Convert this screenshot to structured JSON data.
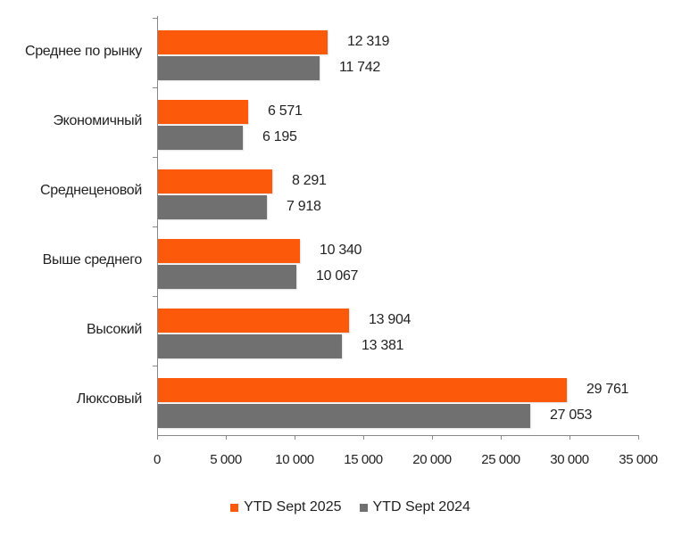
{
  "chart_data": {
    "type": "bar",
    "orientation": "horizontal",
    "title": "",
    "xlabel": "",
    "ylabel": "",
    "categories": [
      "Среднее по рынку",
      "Экономичный",
      "Среднеценовой",
      "Выше среднего",
      "Высокий",
      "Люксовый"
    ],
    "series": [
      {
        "name": "YTD Sept 2025",
        "color": "#FC5A0A",
        "values": [
          12319,
          6571,
          8291,
          10340,
          13904,
          29761
        ],
        "labels": [
          "12 319",
          "6 571",
          "8 291",
          "10 340",
          "13 904",
          "29 761"
        ]
      },
      {
        "name": "YTD Sept 2024",
        "color": "#707070",
        "values": [
          11742,
          6195,
          7918,
          10067,
          13381,
          27053
        ],
        "labels": [
          "11 742",
          "6 195",
          "7 918",
          "10 067",
          "13 381",
          "27 053"
        ]
      }
    ],
    "xlim": [
      0,
      35000
    ],
    "xticks": [
      0,
      5000,
      10000,
      15000,
      20000,
      25000,
      30000,
      35000
    ],
    "xtick_labels": [
      "0",
      "5 000",
      "10 000",
      "15 000",
      "20 000",
      "25 000",
      "30 000",
      "35 000"
    ],
    "grid": false,
    "legend_position": "bottom"
  },
  "legend": {
    "items": [
      {
        "label": "YTD Sept 2025",
        "color": "#FC5A0A"
      },
      {
        "label": "YTD Sept 2024",
        "color": "#707070"
      }
    ]
  }
}
